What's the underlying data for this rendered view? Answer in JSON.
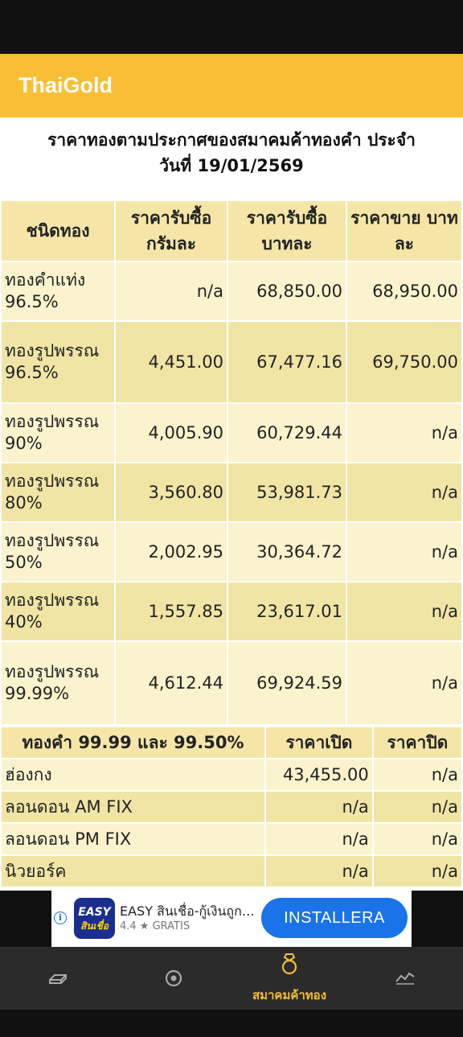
{
  "app": {
    "title": "ThaiGold"
  },
  "page": {
    "heading_line1": "ราคาทองตามประกาศของสมาคมค้าทองคำ ประจำ",
    "heading_line2": "วันที่ 19/01/2569"
  },
  "table1": {
    "headers": [
      "ชนิดทอง",
      "ราคารับซื้อ กรัมละ",
      "ราคารับซื้อ บาทละ",
      "ราคาขาย บาทละ"
    ],
    "rows": [
      {
        "name": "ทองคำแท่ง 96.5%",
        "buy_gram": "n/a",
        "buy_baht": "68,850.00",
        "sell_baht": "68,950.00"
      },
      {
        "name": "ทองรูปพรรณ 96.5%",
        "buy_gram": "4,451.00",
        "buy_baht": "67,477.16",
        "sell_baht": "69,750.00"
      },
      {
        "name": "ทองรูปพรรณ 90%",
        "buy_gram": "4,005.90",
        "buy_baht": "60,729.44",
        "sell_baht": "n/a"
      },
      {
        "name": "ทองรูปพรรณ 80%",
        "buy_gram": "3,560.80",
        "buy_baht": "53,981.73",
        "sell_baht": "n/a"
      },
      {
        "name": "ทองรูปพรรณ 50%",
        "buy_gram": "2,002.95",
        "buy_baht": "30,364.72",
        "sell_baht": "n/a"
      },
      {
        "name": "ทองรูปพรรณ 40%",
        "buy_gram": "1,557.85",
        "buy_baht": "23,617.01",
        "sell_baht": "n/a"
      },
      {
        "name": "ทองรูปพรรณ 99.99%",
        "buy_gram": "4,612.44",
        "buy_baht": "69,924.59",
        "sell_baht": "n/a"
      }
    ]
  },
  "table2": {
    "headers": [
      "ทองคำ 99.99 และ 99.50%",
      "ราคาเปิด",
      "ราคาปิด"
    ],
    "rows": [
      {
        "market": "ฮ่องกง",
        "open": "43,455.00",
        "close": "n/a"
      },
      {
        "market": "ลอนดอน AM FIX",
        "open": "n/a",
        "close": "n/a"
      },
      {
        "market": "ลอนดอน PM FIX",
        "open": "n/a",
        "close": "n/a"
      },
      {
        "market": "นิวยอร์ค",
        "open": "n/a",
        "close": "n/a"
      }
    ]
  },
  "ad": {
    "logo_line1": "EASY",
    "logo_line2": "สินเชื่อ",
    "title": "EASY สินเชื่อ-กู้เงินถูก…",
    "rating": "4.4 ★ GRATIS",
    "button": "INSTALLERA",
    "info_glyph": "i"
  },
  "nav": {
    "items": [
      {
        "icon": "gold-bar-icon",
        "label": ""
      },
      {
        "icon": "target-icon",
        "label": ""
      },
      {
        "icon": "ring-icon",
        "label": "สมาคมค้าทอง",
        "active": true
      },
      {
        "icon": "chart-line-icon",
        "label": ""
      }
    ],
    "active_color": "#F9BF34"
  },
  "colors": {
    "accent": "#F9BF34",
    "header_cell": "#F5E6A8",
    "row_light": "#FAF3CE",
    "row_dark": "#F1E5A6",
    "ad_button": "#1A73E8"
  }
}
